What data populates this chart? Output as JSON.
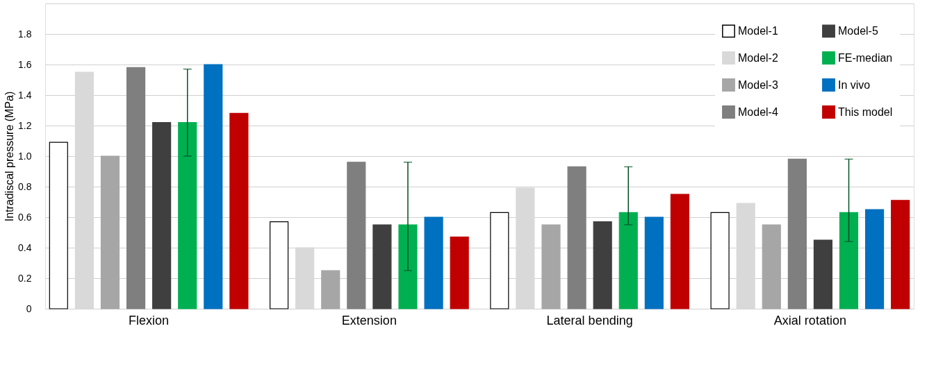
{
  "chart_data": {
    "type": "bar",
    "ylabel": "Intradiscal pressure (MPa)",
    "categories": [
      "Flexion",
      "Extension",
      "Lateral bending",
      "Axial rotation"
    ],
    "series": [
      {
        "name": "Model-1",
        "color": "#ffffff",
        "values": [
          1.09,
          0.57,
          0.63,
          0.63
        ]
      },
      {
        "name": "Model-2",
        "color": "#d9d9d9",
        "values": [
          1.55,
          0.4,
          0.79,
          0.69
        ]
      },
      {
        "name": "Model-3",
        "color": "#a6a6a6",
        "values": [
          1.0,
          0.25,
          0.55,
          0.55
        ]
      },
      {
        "name": "Model-4",
        "color": "#7f7f7f",
        "values": [
          1.58,
          0.96,
          0.93,
          0.98
        ]
      },
      {
        "name": "Model-5",
        "color": "#3f3f3f",
        "values": [
          1.22,
          0.55,
          0.57,
          0.45
        ]
      },
      {
        "name": "FE-median",
        "color": "#00b050",
        "values": [
          1.22,
          0.55,
          0.63,
          0.63
        ],
        "errors": [
          [
            1.0,
            1.57
          ],
          [
            0.25,
            0.96
          ],
          [
            0.55,
            0.93
          ],
          [
            0.44,
            0.98
          ]
        ]
      },
      {
        "name": "In vivo",
        "color": "#0070c0",
        "values": [
          1.6,
          0.6,
          0.6,
          0.65
        ]
      },
      {
        "name": "This model",
        "color": "#c00000",
        "values": [
          1.28,
          0.47,
          0.75,
          0.71
        ]
      }
    ],
    "ylim": [
      0,
      2
    ],
    "yticks": [
      0,
      0.2,
      0.4,
      0.6,
      0.8,
      {
        "value": 1,
        "label": "1.0"
      },
      1.2,
      1.4,
      1.6,
      1.8,
      {
        "value": 2,
        "label": null
      }
    ],
    "grid": "y",
    "legend": "top right"
  }
}
